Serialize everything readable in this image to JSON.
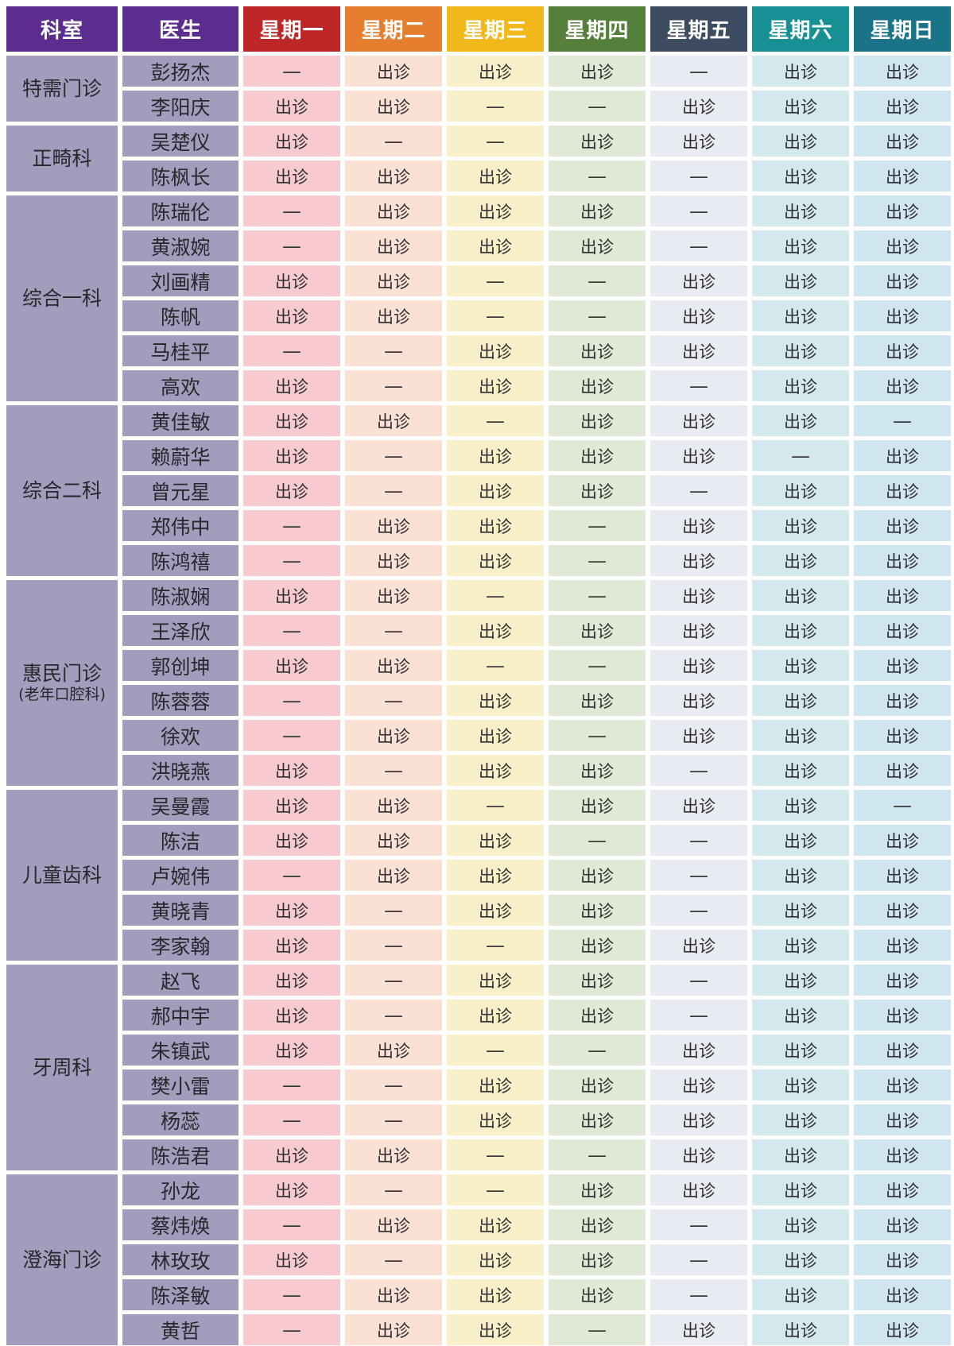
{
  "table": {
    "columns": [
      {
        "label": "科室",
        "color": "#5B2D8E"
      },
      {
        "label": "医生",
        "color": "#5B2D8E"
      },
      {
        "label": "星期一",
        "color": "#BE2728"
      },
      {
        "label": "星期二",
        "color": "#E67E2F"
      },
      {
        "label": "星期三",
        "color": "#F0B81A"
      },
      {
        "label": "星期四",
        "color": "#55803C"
      },
      {
        "label": "星期五",
        "color": "#3E4C62"
      },
      {
        "label": "星期六",
        "color": "#179094"
      },
      {
        "label": "星期日",
        "color": "#1B7389"
      }
    ],
    "day_cell_colors": [
      "#F7CACF",
      "#FAE1D3",
      "#F9F0C9",
      "#DFE9D6",
      "#E8EBF1",
      "#D3E9ED",
      "#CFE6F0"
    ],
    "name_cell_color": "#A29DBD",
    "present_label": "出诊",
    "absent_label": "—",
    "sections": [
      {
        "department": "特需门诊",
        "department_sub": "",
        "doctors": [
          {
            "name": "彭扬杰",
            "schedule": [
              "—",
              "出诊",
              "出诊",
              "出诊",
              "—",
              "出诊",
              "出诊"
            ]
          },
          {
            "name": "李阳庆",
            "schedule": [
              "出诊",
              "出诊",
              "—",
              "—",
              "出诊",
              "出诊",
              "出诊"
            ]
          }
        ]
      },
      {
        "department": "正畸科",
        "department_sub": "",
        "doctors": [
          {
            "name": "吴楚仪",
            "schedule": [
              "出诊",
              "—",
              "—",
              "出诊",
              "出诊",
              "出诊",
              "出诊"
            ]
          },
          {
            "name": "陈枫长",
            "schedule": [
              "出诊",
              "出诊",
              "出诊",
              "—",
              "—",
              "出诊",
              "出诊"
            ]
          }
        ]
      },
      {
        "department": "综合一科",
        "department_sub": "",
        "doctors": [
          {
            "name": "陈瑞伦",
            "schedule": [
              "—",
              "出诊",
              "出诊",
              "出诊",
              "—",
              "出诊",
              "出诊"
            ]
          },
          {
            "name": "黄淑婉",
            "schedule": [
              "—",
              "出诊",
              "出诊",
              "出诊",
              "—",
              "出诊",
              "出诊"
            ]
          },
          {
            "name": "刘画精",
            "schedule": [
              "出诊",
              "出诊",
              "—",
              "—",
              "出诊",
              "出诊",
              "出诊"
            ]
          },
          {
            "name": "陈帆",
            "schedule": [
              "出诊",
              "出诊",
              "—",
              "—",
              "出诊",
              "出诊",
              "出诊"
            ]
          },
          {
            "name": "马桂平",
            "schedule": [
              "—",
              "—",
              "出诊",
              "出诊",
              "出诊",
              "出诊",
              "出诊"
            ]
          },
          {
            "name": "高欢",
            "schedule": [
              "出诊",
              "—",
              "出诊",
              "出诊",
              "—",
              "出诊",
              "出诊"
            ]
          }
        ]
      },
      {
        "department": "综合二科",
        "department_sub": "",
        "doctors": [
          {
            "name": "黄佳敏",
            "schedule": [
              "出诊",
              "出诊",
              "—",
              "出诊",
              "出诊",
              "出诊",
              "—"
            ]
          },
          {
            "name": "赖蔚华",
            "schedule": [
              "出诊",
              "—",
              "出诊",
              "出诊",
              "出诊",
              "—",
              "出诊"
            ]
          },
          {
            "name": "曾元星",
            "schedule": [
              "出诊",
              "—",
              "出诊",
              "出诊",
              "—",
              "出诊",
              "出诊"
            ]
          },
          {
            "name": "郑伟中",
            "schedule": [
              "—",
              "出诊",
              "出诊",
              "—",
              "出诊",
              "出诊",
              "出诊"
            ]
          },
          {
            "name": "陈鸿禧",
            "schedule": [
              "—",
              "出诊",
              "出诊",
              "—",
              "出诊",
              "出诊",
              "出诊"
            ]
          }
        ]
      },
      {
        "department": "惠民门诊",
        "department_sub": "(老年口腔科)",
        "doctors": [
          {
            "name": "陈淑娴",
            "schedule": [
              "出诊",
              "出诊",
              "—",
              "—",
              "出诊",
              "出诊",
              "出诊"
            ]
          },
          {
            "name": "王泽欣",
            "schedule": [
              "—",
              "—",
              "出诊",
              "出诊",
              "出诊",
              "出诊",
              "出诊"
            ]
          },
          {
            "name": "郭创坤",
            "schedule": [
              "出诊",
              "出诊",
              "—",
              "—",
              "出诊",
              "出诊",
              "出诊"
            ]
          },
          {
            "name": "陈蓉蓉",
            "schedule": [
              "—",
              "—",
              "出诊",
              "出诊",
              "出诊",
              "出诊",
              "出诊"
            ]
          },
          {
            "name": "徐欢",
            "schedule": [
              "—",
              "出诊",
              "出诊",
              "—",
              "出诊",
              "出诊",
              "出诊"
            ]
          },
          {
            "name": "洪晓燕",
            "schedule": [
              "出诊",
              "—",
              "出诊",
              "出诊",
              "—",
              "出诊",
              "出诊"
            ]
          }
        ]
      },
      {
        "department": "儿童齿科",
        "department_sub": "",
        "doctors": [
          {
            "name": "吴曼霞",
            "schedule": [
              "出诊",
              "出诊",
              "—",
              "出诊",
              "出诊",
              "出诊",
              "—"
            ]
          },
          {
            "name": "陈洁",
            "schedule": [
              "出诊",
              "出诊",
              "出诊",
              "—",
              "—",
              "出诊",
              "出诊"
            ]
          },
          {
            "name": "卢婉伟",
            "schedule": [
              "—",
              "出诊",
              "出诊",
              "出诊",
              "—",
              "出诊",
              "出诊"
            ]
          },
          {
            "name": "黄晓青",
            "schedule": [
              "出诊",
              "—",
              "出诊",
              "出诊",
              "—",
              "出诊",
              "出诊"
            ]
          },
          {
            "name": "李家翰",
            "schedule": [
              "出诊",
              "—",
              "—",
              "出诊",
              "出诊",
              "出诊",
              "出诊"
            ]
          }
        ]
      },
      {
        "department": "牙周科",
        "department_sub": "",
        "doctors": [
          {
            "name": "赵飞",
            "schedule": [
              "出诊",
              "—",
              "出诊",
              "出诊",
              "—",
              "出诊",
              "出诊"
            ]
          },
          {
            "name": "郝中宇",
            "schedule": [
              "出诊",
              "—",
              "出诊",
              "出诊",
              "—",
              "出诊",
              "出诊"
            ]
          },
          {
            "name": "朱镇武",
            "schedule": [
              "出诊",
              "出诊",
              "—",
              "—",
              "出诊",
              "出诊",
              "出诊"
            ]
          },
          {
            "name": "樊小雷",
            "schedule": [
              "—",
              "—",
              "出诊",
              "出诊",
              "出诊",
              "出诊",
              "出诊"
            ]
          },
          {
            "name": "杨蕊",
            "schedule": [
              "—",
              "—",
              "出诊",
              "出诊",
              "出诊",
              "出诊",
              "出诊"
            ]
          },
          {
            "name": "陈浩君",
            "schedule": [
              "出诊",
              "出诊",
              "—",
              "—",
              "出诊",
              "出诊",
              "出诊"
            ]
          }
        ]
      },
      {
        "department": "澄海门诊",
        "department_sub": "",
        "doctors": [
          {
            "name": "孙龙",
            "schedule": [
              "出诊",
              "—",
              "—",
              "出诊",
              "出诊",
              "出诊",
              "出诊"
            ]
          },
          {
            "name": "蔡炜焕",
            "schedule": [
              "—",
              "出诊",
              "出诊",
              "出诊",
              "—",
              "出诊",
              "出诊"
            ]
          },
          {
            "name": "林玫玫",
            "schedule": [
              "出诊",
              "—",
              "出诊",
              "出诊",
              "—",
              "出诊",
              "出诊"
            ]
          },
          {
            "name": "陈泽敏",
            "schedule": [
              "—",
              "出诊",
              "出诊",
              "出诊",
              "—",
              "出诊",
              "出诊"
            ]
          },
          {
            "name": "黄哲",
            "schedule": [
              "—",
              "出诊",
              "出诊",
              "—",
              "出诊",
              "出诊",
              "出诊"
            ]
          }
        ]
      }
    ]
  }
}
